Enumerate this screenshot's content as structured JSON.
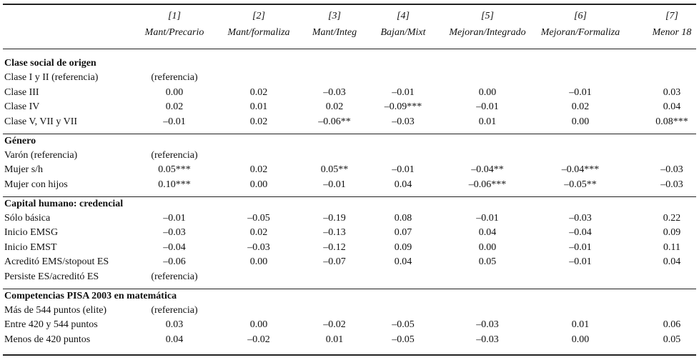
{
  "table": {
    "columns": [
      {
        "num": "[1]",
        "label": "Mant/Precario"
      },
      {
        "num": "[2]",
        "label": "Mant/formaliza"
      },
      {
        "num": "[3]",
        "label": "Mant/Integ"
      },
      {
        "num": "[4]",
        "label": "Bajan/Mixt"
      },
      {
        "num": "[5]",
        "label": "Mejoran/Integrado"
      },
      {
        "num": "[6]",
        "label": "Mejoran/Formaliza"
      },
      {
        "num": "[7]",
        "label": "Menor 18"
      }
    ],
    "sections": [
      {
        "title": "Clase social de origen",
        "rows": [
          {
            "label": "Clase I y II (referencia)",
            "cells": [
              "(referencia)",
              null,
              null,
              null,
              null,
              null,
              null
            ]
          },
          {
            "label": "Clase III",
            "cells": [
              "0.00",
              "0.02",
              "–0.03",
              "–0.01",
              "0.00",
              "–0.01",
              "0.03"
            ]
          },
          {
            "label": "Clase IV",
            "cells": [
              "0.02",
              "0.01",
              "0.02",
              "–0.09***",
              "–0.01",
              "0.02",
              "0.04"
            ]
          },
          {
            "label": "Clase V, VII y VII",
            "cells": [
              "–0.01",
              "0.02",
              "–0.06**",
              "–0.03",
              "0.01",
              "0.00",
              "0.08***"
            ]
          }
        ]
      },
      {
        "title": "Género",
        "rows": [
          {
            "label": "Varón (referencia)",
            "cells": [
              "(referencia)",
              null,
              null,
              null,
              null,
              null,
              null
            ]
          },
          {
            "label": "Mujer s/h",
            "cells": [
              "0.05***",
              "0.02",
              "0.05**",
              "–0.01",
              "–0.04**",
              "–0.04***",
              "–0.03"
            ]
          },
          {
            "label": "Mujer con hijos",
            "cells": [
              "0.10***",
              "0.00",
              "–0.01",
              "0.04",
              "–0.06***",
              "–0.05**",
              "–0.03"
            ]
          }
        ]
      },
      {
        "title": "Capital humano: credencial",
        "rows": [
          {
            "label": "Sólo básica",
            "cells": [
              "–0.01",
              "–0.05",
              "–0.19",
              "0.08",
              "–0.01",
              "–0.03",
              "0.22"
            ]
          },
          {
            "label": "Inicio EMSG",
            "cells": [
              "–0.03",
              "0.02",
              "–0.13",
              "0.07",
              "0.04",
              "–0.04",
              "0.09"
            ]
          },
          {
            "label": "Inicio EMST",
            "cells": [
              "–0.04",
              "–0.03",
              "–0.12",
              "0.09",
              "0.00",
              "–0.01",
              "0.11"
            ]
          },
          {
            "label": "Acreditó EMS/stopout ES",
            "cells": [
              "–0.06",
              "0.00",
              "–0.07",
              "0.04",
              "0.05",
              "–0.01",
              "0.04"
            ]
          },
          {
            "label": "Persiste ES/acreditó ES",
            "cells": [
              "(referencia)",
              null,
              null,
              null,
              null,
              null,
              null
            ]
          }
        ]
      },
      {
        "title": "Competencias PISA 2003 en matemática",
        "rows": [
          {
            "label": "Más de 544 puntos (elite)",
            "cells": [
              "(referencia)",
              null,
              null,
              null,
              null,
              null,
              null
            ]
          },
          {
            "label": "Entre 420 y 544 puntos",
            "cells": [
              "0.03",
              "0.00",
              "–0.02",
              "–0.05",
              "–0.03",
              "0.01",
              "0.06"
            ]
          },
          {
            "label": "Menos de 420 puntos",
            "cells": [
              "0.04",
              "–0.02",
              "0.01",
              "–0.05",
              "–0.03",
              "0.00",
              "0.05"
            ]
          }
        ]
      }
    ]
  }
}
